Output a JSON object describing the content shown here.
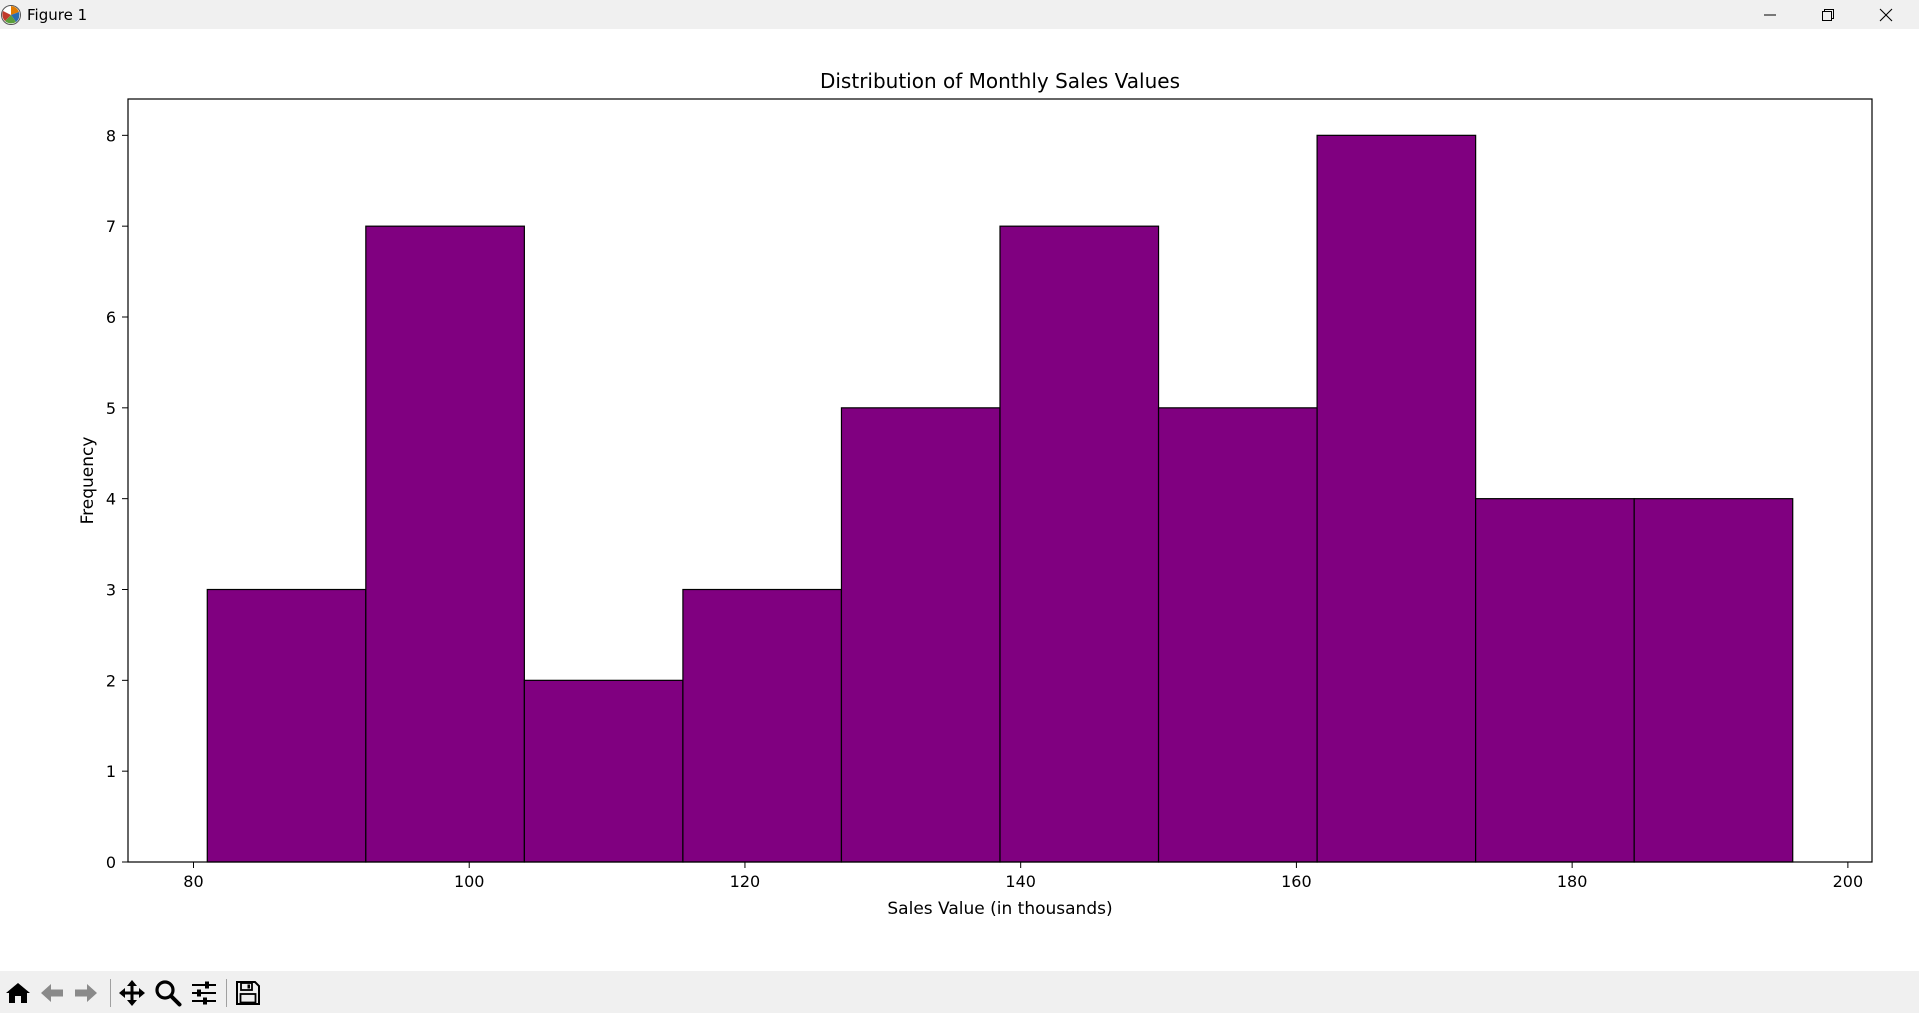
{
  "window": {
    "title": "Figure 1"
  },
  "toolbar": {
    "buttons": [
      "home-icon",
      "back-icon",
      "forward-icon",
      "pan-icon",
      "zoom-icon",
      "configure-icon",
      "save-icon"
    ]
  },
  "colors": {
    "bar_fill": "#800080",
    "bar_edge": "#000000"
  },
  "chart_data": {
    "type": "bar",
    "title": "Distribution of Monthly Sales Values",
    "xlabel": "Sales Value (in thousands)",
    "ylabel": "Frequency",
    "bin_edges": [
      81.0,
      92.5,
      104.0,
      115.5,
      127.0,
      138.5,
      150.0,
      161.5,
      173.0,
      184.5,
      196.0
    ],
    "values": [
      3,
      7,
      2,
      3,
      5,
      7,
      5,
      8,
      4,
      4
    ],
    "xlim": [
      75.25,
      201.75
    ],
    "ylim": [
      0,
      8.4
    ],
    "xticks": [
      80,
      100,
      120,
      140,
      160,
      180,
      200
    ],
    "yticks": [
      0,
      1,
      2,
      3,
      4,
      5,
      6,
      7,
      8
    ],
    "grid": false
  }
}
